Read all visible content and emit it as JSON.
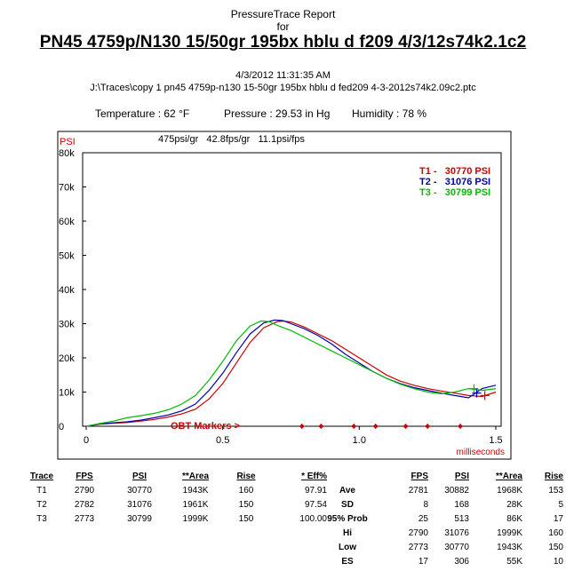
{
  "header": {
    "report_title": "PressureTrace Report",
    "for_label": "for",
    "load_title": "PN45 4759p/N130 15/50gr 195bx hblu d f209 4/3/12s74k2.1c2",
    "datetime": "4/3/2012 11:31:35 AM",
    "file_path": "J:\\Traces\\copy 1 pn45 4759p-n130 15-50gr 195bx hblu d fed209 4-3-2012s74k2.09c2.ptc"
  },
  "conditions": {
    "temperature": "Temperature : 62 °F",
    "pressure": "Pressure : 29.53 in Hg",
    "humidity": "Humidity : 78 %"
  },
  "chart_data": {
    "type": "line",
    "ylabel": "PSI",
    "xlabel": "milliseconds",
    "xlim": [
      0,
      1.5
    ],
    "ylim": [
      0,
      80000
    ],
    "x_ticks": [
      0,
      0.5,
      1.0,
      1.5
    ],
    "x_tick_labels": [
      "0",
      "0.5",
      "1.0",
      "1.5"
    ],
    "y_ticks": [
      0,
      10000,
      20000,
      30000,
      40000,
      50000,
      60000,
      70000,
      80000
    ],
    "y_tick_labels": [
      "0",
      "10k",
      "20k",
      "30k",
      "40k",
      "50k",
      "60k",
      "70k",
      "80k"
    ],
    "grid": false,
    "ratios": "475psi/gr   42.8fps/gr   11.1psi/fps",
    "obt_label": "OBT Markers >",
    "obt_markers_ms": [
      0.79,
      0.86,
      0.98,
      1.06,
      1.17,
      1.25,
      1.37
    ],
    "legend": [
      {
        "label": "T1 -   30770 PSI",
        "color": "#cc0000"
      },
      {
        "label": "T2 -   31076 PSI",
        "color": "#0000aa"
      },
      {
        "label": "T3 -   30799 PSI",
        "color": "#00bb00"
      }
    ],
    "series": [
      {
        "name": "T1",
        "color": "#cc0000",
        "points": [
          [
            0,
            0
          ],
          [
            0.05,
            600
          ],
          [
            0.1,
            900
          ],
          [
            0.15,
            1100
          ],
          [
            0.2,
            1500
          ],
          [
            0.25,
            2000
          ],
          [
            0.3,
            2700
          ],
          [
            0.35,
            3600
          ],
          [
            0.4,
            5000
          ],
          [
            0.45,
            8000
          ],
          [
            0.5,
            12500
          ],
          [
            0.55,
            18500
          ],
          [
            0.6,
            24500
          ],
          [
            0.65,
            28800
          ],
          [
            0.7,
            30600
          ],
          [
            0.72,
            30770
          ],
          [
            0.75,
            30500
          ],
          [
            0.8,
            29000
          ],
          [
            0.85,
            27000
          ],
          [
            0.9,
            25000
          ],
          [
            0.95,
            22500
          ],
          [
            1.0,
            20000
          ],
          [
            1.05,
            17500
          ],
          [
            1.1,
            15000
          ],
          [
            1.15,
            13200
          ],
          [
            1.2,
            12000
          ],
          [
            1.25,
            11000
          ],
          [
            1.3,
            10300
          ],
          [
            1.35,
            9700
          ],
          [
            1.4,
            9000
          ],
          [
            1.45,
            8700
          ],
          [
            1.5,
            10000
          ]
        ]
      },
      {
        "name": "T2",
        "color": "#0000aa",
        "points": [
          [
            0,
            0
          ],
          [
            0.05,
            700
          ],
          [
            0.1,
            1000
          ],
          [
            0.15,
            1300
          ],
          [
            0.2,
            1800
          ],
          [
            0.25,
            2500
          ],
          [
            0.3,
            3300
          ],
          [
            0.35,
            4500
          ],
          [
            0.4,
            6500
          ],
          [
            0.45,
            10500
          ],
          [
            0.5,
            15500
          ],
          [
            0.55,
            21500
          ],
          [
            0.6,
            27000
          ],
          [
            0.65,
            30200
          ],
          [
            0.69,
            31076
          ],
          [
            0.72,
            30900
          ],
          [
            0.75,
            30000
          ],
          [
            0.8,
            28500
          ],
          [
            0.85,
            26500
          ],
          [
            0.9,
            24000
          ],
          [
            0.95,
            21000
          ],
          [
            1.0,
            18500
          ],
          [
            1.05,
            16000
          ],
          [
            1.1,
            14000
          ],
          [
            1.15,
            12500
          ],
          [
            1.2,
            11300
          ],
          [
            1.25,
            10500
          ],
          [
            1.3,
            9700
          ],
          [
            1.35,
            9000
          ],
          [
            1.4,
            8300
          ],
          [
            1.45,
            11000
          ],
          [
            1.5,
            12000
          ]
        ]
      },
      {
        "name": "T3",
        "color": "#00bb00",
        "points": [
          [
            0,
            0
          ],
          [
            0.05,
            800
          ],
          [
            0.1,
            1500
          ],
          [
            0.15,
            2500
          ],
          [
            0.2,
            3100
          ],
          [
            0.25,
            3800
          ],
          [
            0.3,
            4800
          ],
          [
            0.35,
            6500
          ],
          [
            0.4,
            9000
          ],
          [
            0.45,
            13500
          ],
          [
            0.5,
            19000
          ],
          [
            0.55,
            25000
          ],
          [
            0.6,
            29300
          ],
          [
            0.64,
            30799
          ],
          [
            0.67,
            30600
          ],
          [
            0.7,
            29500
          ],
          [
            0.75,
            28000
          ],
          [
            0.8,
            26000
          ],
          [
            0.85,
            24000
          ],
          [
            0.9,
            22000
          ],
          [
            0.95,
            20000
          ],
          [
            1.0,
            18000
          ],
          [
            1.05,
            16000
          ],
          [
            1.1,
            14000
          ],
          [
            1.15,
            12300
          ],
          [
            1.2,
            11000
          ],
          [
            1.25,
            10000
          ],
          [
            1.3,
            9500
          ],
          [
            1.35,
            10000
          ],
          [
            1.4,
            11000
          ],
          [
            1.45,
            10500
          ],
          [
            1.5,
            11000
          ]
        ]
      }
    ],
    "end_markers": [
      {
        "x": 1.46,
        "y": 9000,
        "color": "#cc0000"
      },
      {
        "x": 1.43,
        "y": 9700,
        "color": "#0000aa"
      },
      {
        "x": 1.42,
        "y": 11000,
        "color": "#00bb00"
      }
    ]
  },
  "trace_table": {
    "headers": [
      "Trace",
      "FPS",
      "PSI",
      "**Area",
      "Rise",
      "* Eff%"
    ],
    "rows": [
      [
        "T1",
        "2790",
        "30770",
        "1943K",
        "160",
        "97.91"
      ],
      [
        "T2",
        "2782",
        "31076",
        "1961K",
        "150",
        "97.54"
      ],
      [
        "T3",
        "2773",
        "30799",
        "1999K",
        "150",
        "100.00"
      ]
    ]
  },
  "stats_table": {
    "headers": [
      "",
      "FPS",
      "PSI",
      "**Area",
      "Rise"
    ],
    "rows": [
      [
        "Ave",
        "2781",
        "30882",
        "1968K",
        "153"
      ],
      [
        "SD",
        "8",
        "168",
        "28K",
        "5"
      ],
      [
        "95% Prob",
        "25",
        "513",
        "86K",
        "17"
      ],
      [
        "Hi",
        "2790",
        "31076",
        "1999K",
        "160"
      ],
      [
        "Low",
        "2773",
        "30770",
        "1943K",
        "150"
      ],
      [
        "ES",
        "17",
        "306",
        "55K",
        "10"
      ]
    ]
  }
}
